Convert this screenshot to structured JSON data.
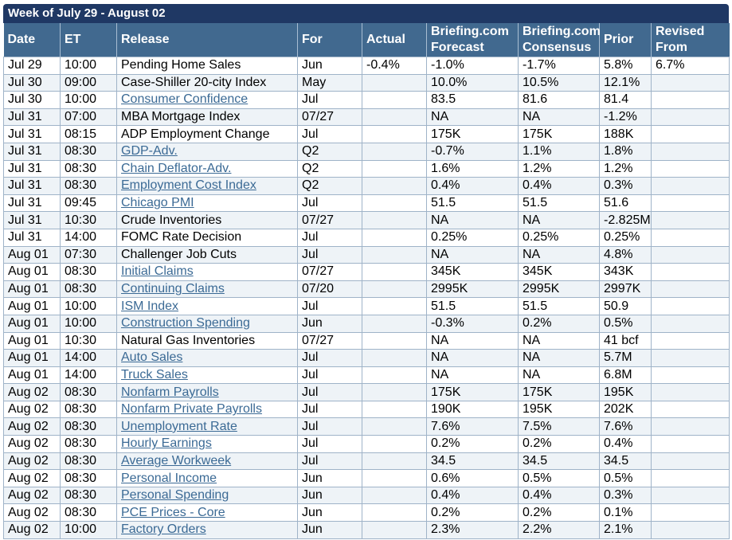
{
  "title": "Week of July 29 - August 02",
  "headers": [
    "Date",
    "ET",
    "Release",
    "For",
    "Actual",
    "Briefing.com Forecast",
    "Briefing.com Consensus",
    "Prior",
    "Revised From"
  ],
  "rows": [
    {
      "date": "Jul 29",
      "et": "10:00",
      "release": "Pending Home Sales",
      "link": false,
      "for": "Jun",
      "actual": "-0.4%",
      "forecast": "-1.0%",
      "consensus": "-1.7%",
      "prior": "5.8%",
      "revised": "6.7%"
    },
    {
      "date": "Jul 30",
      "et": "09:00",
      "release": "Case-Shiller 20-city Index",
      "link": false,
      "for": "May",
      "actual": "",
      "forecast": "10.0%",
      "consensus": "10.5%",
      "prior": "12.1%",
      "revised": ""
    },
    {
      "date": "Jul 30",
      "et": "10:00",
      "release": "Consumer Confidence",
      "link": true,
      "for": "Jul",
      "actual": "",
      "forecast": "83.5",
      "consensus": "81.6",
      "prior": "81.4",
      "revised": ""
    },
    {
      "date": "Jul 31",
      "et": "07:00",
      "release": "MBA Mortgage Index",
      "link": false,
      "for": "07/27",
      "actual": "",
      "forecast": "NA",
      "consensus": "NA",
      "prior": "-1.2%",
      "revised": ""
    },
    {
      "date": "Jul 31",
      "et": "08:15",
      "release": "ADP Employment Change",
      "link": false,
      "for": "Jul",
      "actual": "",
      "forecast": "175K",
      "consensus": "175K",
      "prior": "188K",
      "revised": ""
    },
    {
      "date": "Jul 31",
      "et": "08:30",
      "release": "GDP-Adv.",
      "link": true,
      "for": "Q2",
      "actual": "",
      "forecast": "-0.7%",
      "consensus": "1.1%",
      "prior": "1.8%",
      "revised": ""
    },
    {
      "date": "Jul 31",
      "et": "08:30",
      "release": "Chain Deflator-Adv.",
      "link": true,
      "for": "Q2",
      "actual": "",
      "forecast": "1.6%",
      "consensus": "1.2%",
      "prior": "1.2%",
      "revised": ""
    },
    {
      "date": "Jul 31",
      "et": "08:30",
      "release": "Employment Cost Index",
      "link": true,
      "for": "Q2",
      "actual": "",
      "forecast": "0.4%",
      "consensus": "0.4%",
      "prior": "0.3%",
      "revised": ""
    },
    {
      "date": "Jul 31",
      "et": "09:45",
      "release": "Chicago PMI",
      "link": true,
      "for": "Jul",
      "actual": "",
      "forecast": "51.5",
      "consensus": "51.5",
      "prior": "51.6",
      "revised": ""
    },
    {
      "date": "Jul 31",
      "et": "10:30",
      "release": "Crude Inventories",
      "link": false,
      "for": "07/27",
      "actual": "",
      "forecast": "NA",
      "consensus": "NA",
      "prior": "-2.825M",
      "revised": ""
    },
    {
      "date": "Jul 31",
      "et": "14:00",
      "release": "FOMC Rate Decision",
      "link": false,
      "for": "Jul",
      "actual": "",
      "forecast": "0.25%",
      "consensus": "0.25%",
      "prior": "0.25%",
      "revised": ""
    },
    {
      "date": "Aug 01",
      "et": "07:30",
      "release": "Challenger Job Cuts",
      "link": false,
      "for": "Jul",
      "actual": "",
      "forecast": "NA",
      "consensus": "NA",
      "prior": "4.8%",
      "revised": ""
    },
    {
      "date": "Aug 01",
      "et": "08:30",
      "release": "Initial Claims",
      "link": true,
      "for": "07/27",
      "actual": "",
      "forecast": "345K",
      "consensus": "345K",
      "prior": "343K",
      "revised": ""
    },
    {
      "date": "Aug 01",
      "et": "08:30",
      "release": "Continuing Claims",
      "link": true,
      "for": "07/20",
      "actual": "",
      "forecast": "2995K",
      "consensus": "2995K",
      "prior": "2997K",
      "revised": ""
    },
    {
      "date": "Aug 01",
      "et": "10:00",
      "release": "ISM Index",
      "link": true,
      "for": "Jul",
      "actual": "",
      "forecast": "51.5",
      "consensus": "51.5",
      "prior": "50.9",
      "revised": ""
    },
    {
      "date": "Aug 01",
      "et": "10:00",
      "release": "Construction Spending",
      "link": true,
      "for": "Jun",
      "actual": "",
      "forecast": "-0.3%",
      "consensus": "0.2%",
      "prior": "0.5%",
      "revised": ""
    },
    {
      "date": "Aug 01",
      "et": "10:30",
      "release": "Natural Gas Inventories",
      "link": false,
      "for": "07/27",
      "actual": "",
      "forecast": "NA",
      "consensus": "NA",
      "prior": "41 bcf",
      "revised": ""
    },
    {
      "date": "Aug 01",
      "et": "14:00",
      "release": "Auto Sales",
      "link": true,
      "for": "Jul",
      "actual": "",
      "forecast": "NA",
      "consensus": "NA",
      "prior": "5.7M",
      "revised": ""
    },
    {
      "date": "Aug 01",
      "et": "14:00",
      "release": "Truck Sales",
      "link": true,
      "for": "Jul",
      "actual": "",
      "forecast": "NA",
      "consensus": "NA",
      "prior": "6.8M",
      "revised": ""
    },
    {
      "date": "Aug 02",
      "et": "08:30",
      "release": "Nonfarm Payrolls",
      "link": true,
      "for": "Jul",
      "actual": "",
      "forecast": "175K",
      "consensus": "175K",
      "prior": "195K",
      "revised": ""
    },
    {
      "date": "Aug 02",
      "et": "08:30",
      "release": "Nonfarm Private Payrolls",
      "link": true,
      "for": "Jul",
      "actual": "",
      "forecast": "190K",
      "consensus": "195K",
      "prior": "202K",
      "revised": ""
    },
    {
      "date": "Aug 02",
      "et": "08:30",
      "release": "Unemployment Rate",
      "link": true,
      "for": "Jul",
      "actual": "",
      "forecast": "7.6%",
      "consensus": "7.5%",
      "prior": "7.6%",
      "revised": ""
    },
    {
      "date": "Aug 02",
      "et": "08:30",
      "release": "Hourly Earnings",
      "link": true,
      "for": "Jul",
      "actual": "",
      "forecast": "0.2%",
      "consensus": "0.2%",
      "prior": "0.4%",
      "revised": ""
    },
    {
      "date": "Aug 02",
      "et": "08:30",
      "release": "Average Workweek",
      "link": true,
      "for": "Jul",
      "actual": "",
      "forecast": "34.5",
      "consensus": "34.5",
      "prior": "34.5",
      "revised": ""
    },
    {
      "date": "Aug 02",
      "et": "08:30",
      "release": "Personal Income",
      "link": true,
      "for": "Jun",
      "actual": "",
      "forecast": "0.6%",
      "consensus": "0.5%",
      "prior": "0.5%",
      "revised": ""
    },
    {
      "date": "Aug 02",
      "et": "08:30",
      "release": "Personal Spending",
      "link": true,
      "for": "Jun",
      "actual": "",
      "forecast": "0.4%",
      "consensus": "0.4%",
      "prior": "0.3%",
      "revised": ""
    },
    {
      "date": "Aug 02",
      "et": "08:30",
      "release": "PCE Prices - Core",
      "link": true,
      "for": "Jun",
      "actual": "",
      "forecast": "0.2%",
      "consensus": "0.2%",
      "prior": "0.1%",
      "revised": ""
    },
    {
      "date": "Aug 02",
      "et": "10:00",
      "release": "Factory Orders",
      "link": true,
      "for": "Jun",
      "actual": "",
      "forecast": "2.3%",
      "consensus": "2.2%",
      "prior": "2.1%",
      "revised": ""
    }
  ]
}
